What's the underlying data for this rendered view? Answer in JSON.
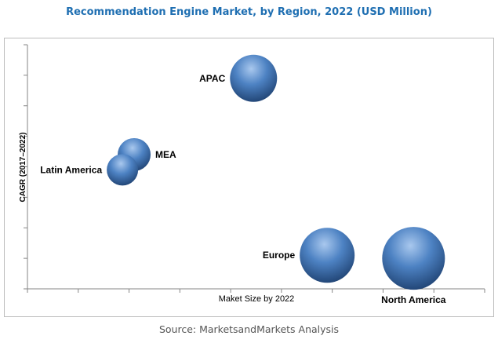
{
  "chart_data": {
    "type": "bubble",
    "title": "Recommendation Engine Market, by Region, 2022 (USD Million)",
    "xlabel": "Maket Size by 2022",
    "ylabel": "CAGR (2017–2022)",
    "xlim": [
      0,
      9
    ],
    "ylim": [
      0,
      8
    ],
    "x_ticks": 9,
    "y_ticks": 8,
    "grid": false,
    "bubble_color": "#3f72b0",
    "points": [
      {
        "label": "APAC",
        "x": 4.45,
        "y": 6.9,
        "size": 30,
        "label_pos": "left"
      },
      {
        "label": "MEA",
        "x": 2.1,
        "y": 4.4,
        "size": 21,
        "label_pos": "right"
      },
      {
        "label": "Latin America",
        "x": 1.87,
        "y": 3.9,
        "size": 20,
        "label_pos": "left"
      },
      {
        "label": "Europe",
        "x": 5.9,
        "y": 1.1,
        "size": 35,
        "label_pos": "left"
      },
      {
        "label": "North America",
        "x": 7.6,
        "y": 1.0,
        "size": 40,
        "label_pos": "below"
      }
    ]
  },
  "source": "Source: MarketsandMarkets Analysis"
}
